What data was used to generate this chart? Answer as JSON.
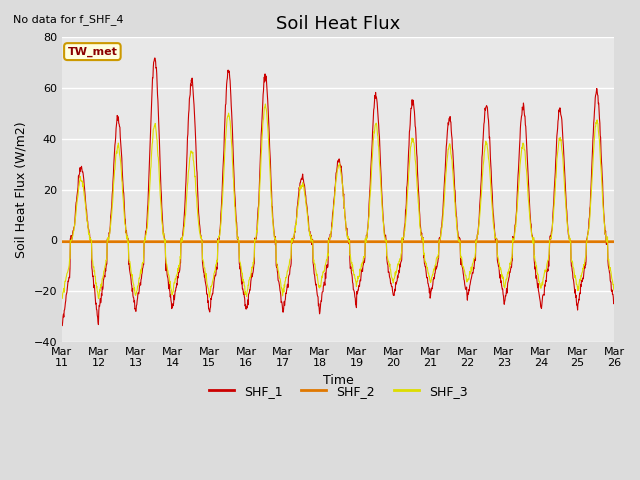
{
  "title": "Soil Heat Flux",
  "subtitle": "No data for f_SHF_4",
  "ylabel": "Soil Heat Flux (W/m2)",
  "xlabel": "Time",
  "annotation": "TW_met",
  "ylim": [
    -40,
    80
  ],
  "yticks": [
    -40,
    -20,
    0,
    20,
    40,
    60,
    80
  ],
  "xtick_labels": [
    "Mar 11",
    "Mar 12",
    "Mar 13",
    "Mar 14",
    "Mar 15",
    "Mar 16",
    "Mar 17",
    "Mar 18",
    "Mar 19",
    "Mar 20",
    "Mar 21",
    "Mar 22",
    "Mar 23",
    "Mar 24",
    "Mar 25",
    "Mar 26"
  ],
  "legend": [
    "SHF_1",
    "SHF_2",
    "SHF_3"
  ],
  "line_colors": [
    "#cc0000",
    "#e07800",
    "#dddd00"
  ],
  "background_color": "#dcdcdc",
  "plot_bg_color": "#e8e8e8",
  "title_fontsize": 13,
  "label_fontsize": 9,
  "tick_fontsize": 8,
  "shf1_day_amps": [
    29,
    48,
    72,
    63,
    67,
    65,
    25,
    32,
    57,
    55,
    48,
    53,
    53,
    52,
    59
  ],
  "shf1_night_amps": [
    35,
    28,
    28,
    27,
    28,
    28,
    28,
    27,
    22,
    22,
    22,
    23,
    26,
    27,
    26
  ],
  "shf3_day_amps": [
    24,
    37,
    45,
    35,
    50,
    53,
    22,
    30,
    46,
    40,
    37,
    38,
    38,
    40,
    47
  ],
  "shf3_night_amps": [
    23,
    22,
    22,
    21,
    22,
    22,
    20,
    18,
    17,
    16,
    17,
    17,
    19,
    19,
    20
  ]
}
